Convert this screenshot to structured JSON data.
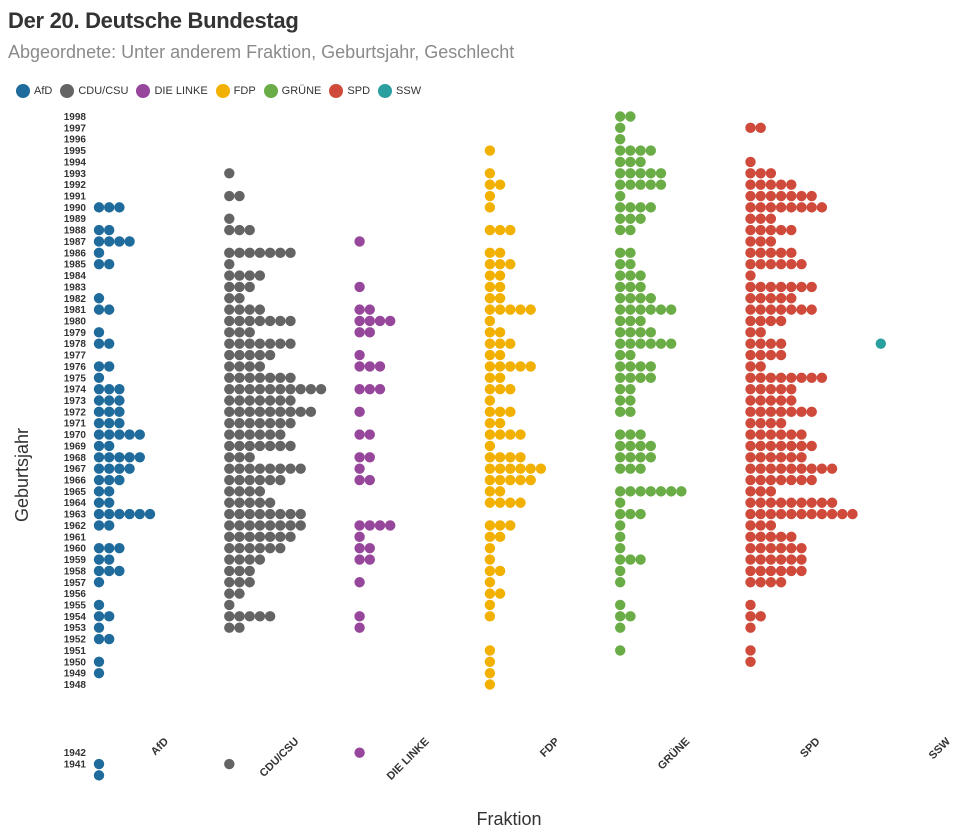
{
  "title": "Der 20. Deutsche Bundestag",
  "subtitle": "Abgeordnete: Unter anderem Fraktion, Geburtsjahr, Geschlecht",
  "legend": [
    {
      "label": "AfD",
      "color": "#1f6b9c"
    },
    {
      "label": "CDU/CSU",
      "color": "#646464"
    },
    {
      "label": "DIE LINKE",
      "color": "#97479b"
    },
    {
      "label": "FDP",
      "color": "#f2b000"
    },
    {
      "label": "GRÜNE",
      "color": "#6aac46"
    },
    {
      "label": "SPD",
      "color": "#cf4a3a"
    },
    {
      "label": "SSW",
      "color": "#2a9fa0"
    }
  ],
  "chart_data": {
    "type": "scatter",
    "subtype": "dot-histogram",
    "title": "Der 20. Deutsche Bundestag",
    "subtitle": "Abgeordnete: Unter anderem Fraktion, Geburtsjahr, Geschlecht",
    "xlabel": "Fraktion",
    "ylabel": "Geburtsjahr",
    "categories": [
      "AfD",
      "CDU/CSU",
      "DIE LINKE",
      "FDP",
      "GRÜNE",
      "SPD",
      "SSW"
    ],
    "year_tick_labels": [
      "1998",
      "1997",
      "1996",
      "1995",
      "1994",
      "1993",
      "1992",
      "1991",
      "1990",
      "1989",
      "1988",
      "1987",
      "1986",
      "1985",
      "1984",
      "1983",
      "1982",
      "1981",
      "1980",
      "1979",
      "1978",
      "1977",
      "1976",
      "1975",
      "1974",
      "1973",
      "1972",
      "1971",
      "1970",
      "1969",
      "1968",
      "1967",
      "1966",
      "1965",
      "1964",
      "1963",
      "1962",
      "1961",
      "1960",
      "1959",
      "1958",
      "1957",
      "1956",
      "1955",
      "1954",
      "1953",
      "1952",
      "1951",
      "1950",
      "1949",
      "1948",
      "1942",
      "1941"
    ],
    "series": [
      {
        "name": "AfD",
        "counts": {
          "1990": 3,
          "1988": 2,
          "1987": 4,
          "1986": 1,
          "1985": 2,
          "1982": 1,
          "1981": 2,
          "1979": 1,
          "1978": 2,
          "1976": 2,
          "1975": 1,
          "1974": 3,
          "1973": 3,
          "1972": 3,
          "1971": 3,
          "1970": 5,
          "1969": 2,
          "1968": 5,
          "1967": 4,
          "1966": 3,
          "1965": 2,
          "1964": 2,
          "1963": 6,
          "1962": 2,
          "1960": 3,
          "1959": 2,
          "1958": 3,
          "1957": 1,
          "1955": 1,
          "1954": 2,
          "1953": 1,
          "1952": 2,
          "1950": 1,
          "1949": 1,
          "1941": 1,
          "1940": 1
        }
      },
      {
        "name": "CDU/CSU",
        "counts": {
          "1993": 1,
          "1991": 2,
          "1989": 1,
          "1988": 3,
          "1986": 7,
          "1985": 1,
          "1984": 4,
          "1983": 3,
          "1982": 2,
          "1981": 4,
          "1980": 7,
          "1979": 3,
          "1978": 7,
          "1977": 5,
          "1976": 4,
          "1975": 7,
          "1974": 10,
          "1973": 7,
          "1972": 9,
          "1971": 7,
          "1970": 6,
          "1969": 7,
          "1968": 3,
          "1967": 8,
          "1966": 6,
          "1965": 4,
          "1964": 5,
          "1963": 8,
          "1962": 8,
          "1961": 7,
          "1960": 6,
          "1959": 4,
          "1958": 3,
          "1957": 3,
          "1956": 2,
          "1955": 1,
          "1954": 5,
          "1953": 2,
          "1941": 1
        }
      },
      {
        "name": "DIE LINKE",
        "counts": {
          "1987": 1,
          "1983": 1,
          "1981": 2,
          "1980": 4,
          "1979": 2,
          "1977": 1,
          "1976": 3,
          "1974": 3,
          "1972": 1,
          "1970": 2,
          "1968": 2,
          "1967": 1,
          "1966": 2,
          "1962": 4,
          "1961": 1,
          "1960": 2,
          "1959": 2,
          "1957": 1,
          "1954": 1,
          "1953": 1,
          "1942": 1
        }
      },
      {
        "name": "FDP",
        "counts": {
          "1995": 1,
          "1993": 1,
          "1992": 2,
          "1991": 1,
          "1990": 1,
          "1988": 3,
          "1986": 2,
          "1985": 3,
          "1984": 2,
          "1983": 2,
          "1982": 2,
          "1981": 5,
          "1980": 1,
          "1979": 2,
          "1978": 3,
          "1977": 2,
          "1976": 5,
          "1975": 2,
          "1974": 3,
          "1973": 1,
          "1972": 3,
          "1971": 2,
          "1970": 4,
          "1969": 1,
          "1968": 4,
          "1967": 6,
          "1966": 5,
          "1965": 2,
          "1964": 4,
          "1962": 3,
          "1961": 2,
          "1960": 1,
          "1959": 1,
          "1958": 2,
          "1957": 1,
          "1956": 2,
          "1955": 1,
          "1954": 1,
          "1951": 1,
          "1950": 1,
          "1949": 1,
          "1948": 1
        }
      },
      {
        "name": "GRÜNE",
        "counts": {
          "1998": 2,
          "1997": 1,
          "1996": 1,
          "1995": 4,
          "1994": 3,
          "1993": 5,
          "1992": 5,
          "1991": 1,
          "1990": 4,
          "1989": 3,
          "1988": 2,
          "1986": 2,
          "1985": 2,
          "1984": 3,
          "1983": 3,
          "1982": 4,
          "1981": 6,
          "1980": 3,
          "1979": 4,
          "1978": 6,
          "1977": 2,
          "1976": 4,
          "1975": 4,
          "1974": 2,
          "1973": 2,
          "1972": 2,
          "1970": 3,
          "1969": 4,
          "1968": 4,
          "1967": 3,
          "1965": 7,
          "1964": 1,
          "1963": 3,
          "1962": 1,
          "1961": 1,
          "1960": 1,
          "1959": 3,
          "1958": 1,
          "1957": 1,
          "1955": 1,
          "1954": 2,
          "1953": 1,
          "1951": 1
        }
      },
      {
        "name": "SPD",
        "counts": {
          "1997": 2,
          "1994": 1,
          "1993": 3,
          "1992": 5,
          "1991": 7,
          "1990": 8,
          "1989": 3,
          "1988": 5,
          "1987": 3,
          "1986": 5,
          "1985": 6,
          "1984": 1,
          "1983": 7,
          "1982": 5,
          "1981": 7,
          "1980": 4,
          "1979": 2,
          "1978": 4,
          "1977": 4,
          "1976": 2,
          "1975": 8,
          "1974": 5,
          "1973": 5,
          "1972": 7,
          "1971": 4,
          "1970": 6,
          "1969": 7,
          "1968": 6,
          "1967": 9,
          "1966": 7,
          "1965": 3,
          "1964": 9,
          "1963": 11,
          "1962": 3,
          "1961": 5,
          "1960": 6,
          "1959": 6,
          "1958": 6,
          "1957": 4,
          "1955": 1,
          "1954": 2,
          "1953": 1,
          "1951": 1,
          "1950": 1
        }
      },
      {
        "name": "SSW",
        "counts": {
          "1978": 1
        }
      }
    ]
  }
}
